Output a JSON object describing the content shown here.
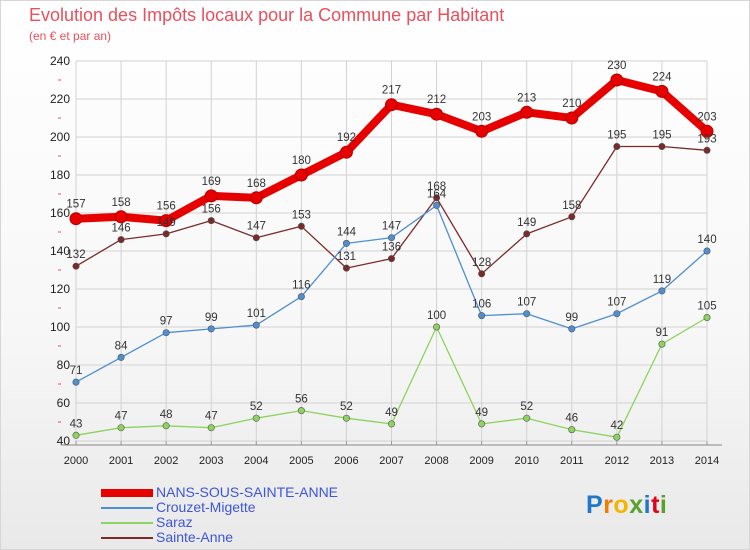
{
  "chart_data": {
    "type": "line",
    "title": "Evolution des Impôts locaux pour la Commune par Habitant",
    "subtitle": "(en € et par an)",
    "xlabel": "",
    "ylabel": "",
    "ylim": [
      40,
      240
    ],
    "yticks": [
      40,
      60,
      80,
      100,
      120,
      140,
      160,
      180,
      200,
      220,
      240
    ],
    "grid": true,
    "categories": [
      "2000",
      "2001",
      "2002",
      "2003",
      "2004",
      "2005",
      "2006",
      "2007",
      "2008",
      "2009",
      "2010",
      "2011",
      "2012",
      "2013",
      "2014"
    ],
    "series": [
      {
        "name": "NANS-SOUS-SAINTE-ANNE",
        "color": "#e60000",
        "values": [
          157,
          158,
          156,
          169,
          168,
          180,
          192,
          217,
          212,
          203,
          213,
          210,
          230,
          224,
          203
        ]
      },
      {
        "name": "Crouzet-Migette",
        "color": "#4d8fd1",
        "values": [
          71,
          84,
          97,
          99,
          101,
          116,
          144,
          147,
          164,
          106,
          107,
          99,
          107,
          119,
          140
        ]
      },
      {
        "name": "Saraz",
        "color": "#8dd35f",
        "values": [
          43,
          47,
          48,
          47,
          52,
          56,
          52,
          49,
          100,
          49,
          52,
          46,
          42,
          91,
          105
        ]
      },
      {
        "name": "Sainte-Anne",
        "color": "#7a2a2a",
        "values": [
          132,
          146,
          149,
          156,
          147,
          153,
          131,
          136,
          168,
          128,
          149,
          158,
          195,
          195,
          193
        ]
      }
    ]
  },
  "logo": {
    "text": "Proxiti",
    "letters": [
      "P",
      "r",
      "o",
      "x",
      "i",
      "t",
      "i"
    ],
    "colors": [
      "#1f78c8",
      "#f07d00",
      "#f5b400",
      "#5aa02c",
      "#1f78c8",
      "#e2001a",
      "#5aa02c"
    ]
  }
}
